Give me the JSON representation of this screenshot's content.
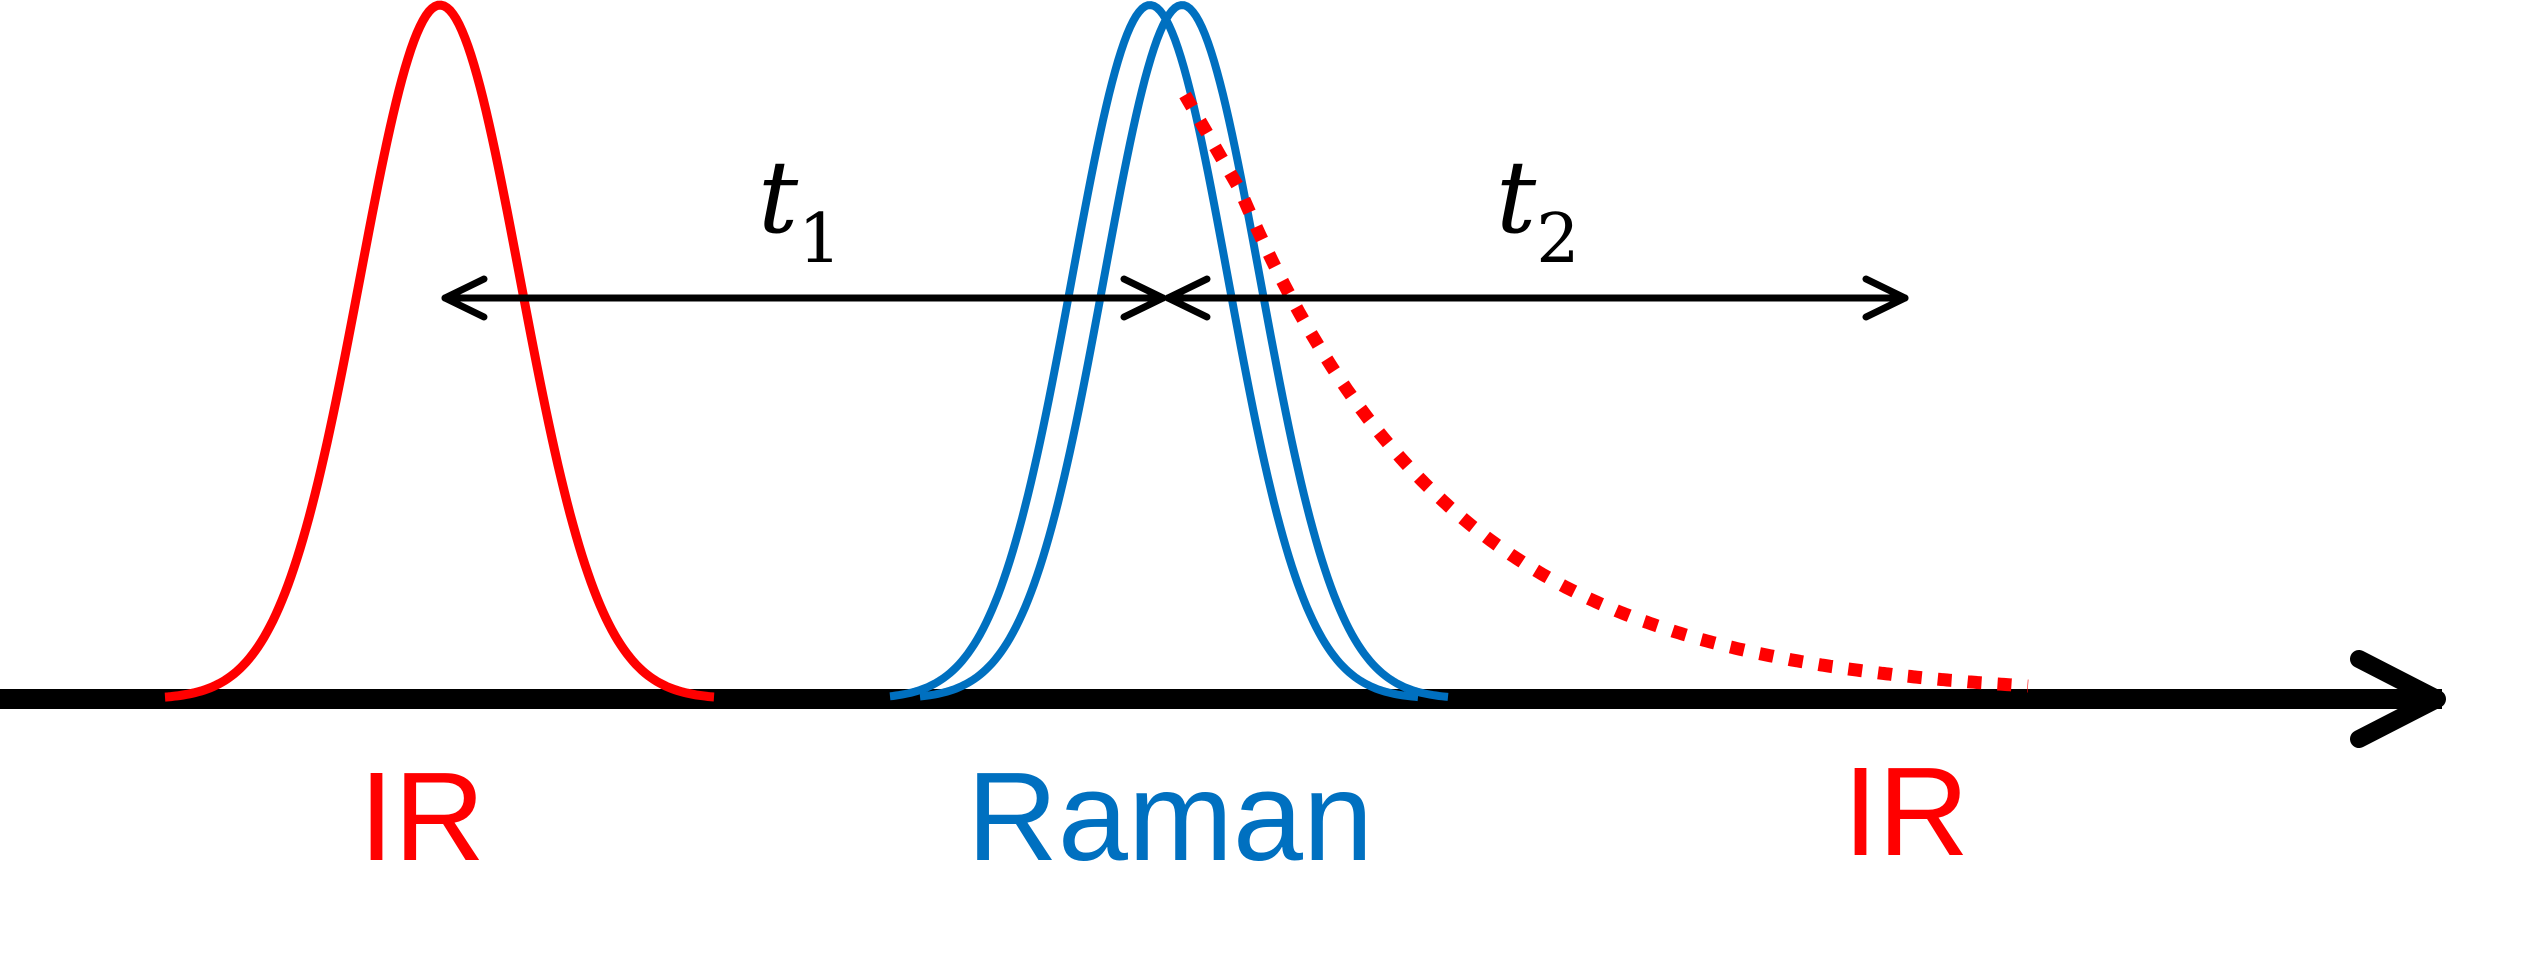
{
  "colors": {
    "ir": "#ff0000",
    "raman": "#0070c0",
    "axis": "#000000"
  },
  "labels": {
    "ir_left": "IR",
    "raman": "Raman",
    "ir_right": "IR"
  },
  "delays": {
    "t1_var": "t",
    "t1_sub": "1",
    "t2_var": "t",
    "t2_sub": "2"
  }
}
